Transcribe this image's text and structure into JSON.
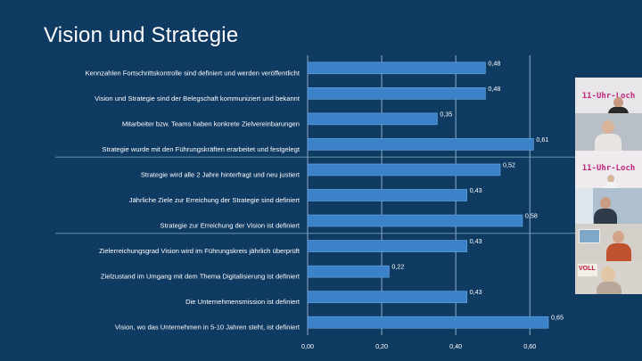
{
  "slide": {
    "title": "Vision und Strategie"
  },
  "chart_data": {
    "type": "bar",
    "orientation": "horizontal",
    "title": "Vision und Strategie",
    "categories": [
      "Kennzahlen Fortschrittskontrolle sind definiert und werden veröffentlicht",
      "Vision und Strategie sind der Belegschaft kommuniziert und bekannt",
      "Mitarbeiter bzw. Teams haben konkrete Zielvereinbarungen",
      "Strategie wurde mit den Führungskräften erarbeitet und festgelegt",
      "Strategie wird alle 2 Jahre hinterfragt und neu justiert",
      "Jährliche Ziele zur Erreichung der Strategie sind definiert",
      "Strategie zur Erreichung der Vision ist definiert",
      "Zielerreichungsgrad Vision wird im Führungskreis jährlich überprüft",
      "Zielzustand im Umgang mit dem Thema Digitalisierung ist definiert",
      "Die Unternehmensmission ist definiert",
      "Vision, wo das Unternehmen in 5-10 Jahren steht, ist definiert"
    ],
    "values": [
      0.48,
      0.48,
      0.35,
      0.61,
      0.52,
      0.43,
      0.58,
      0.43,
      0.22,
      0.43,
      0.65
    ],
    "value_labels": [
      "0,48",
      "0,48",
      "0,35",
      "0,61",
      "0,52",
      "0,43",
      "0,58",
      "0,43",
      "0,22",
      "0,43",
      "0,65"
    ],
    "xlim": [
      0,
      0.65
    ],
    "xticks": [
      0,
      0.2,
      0.4,
      0.6
    ],
    "xtick_labels": [
      "0,00",
      "0,20",
      "0,40",
      "0,60"
    ],
    "grid": true,
    "group_separators_after": [
      3,
      6
    ],
    "bar_color": "#3c82c8",
    "bar_edge_color": "#6aaae6"
  },
  "video_panel": {
    "banners": [
      "11-Uhr-Loch",
      "11-Uhr-Loch"
    ],
    "sign_text": "VOLL"
  },
  "colors": {
    "background": "#0f3a61",
    "grid": "#8eaccb",
    "separator": "#6f9fb0"
  }
}
